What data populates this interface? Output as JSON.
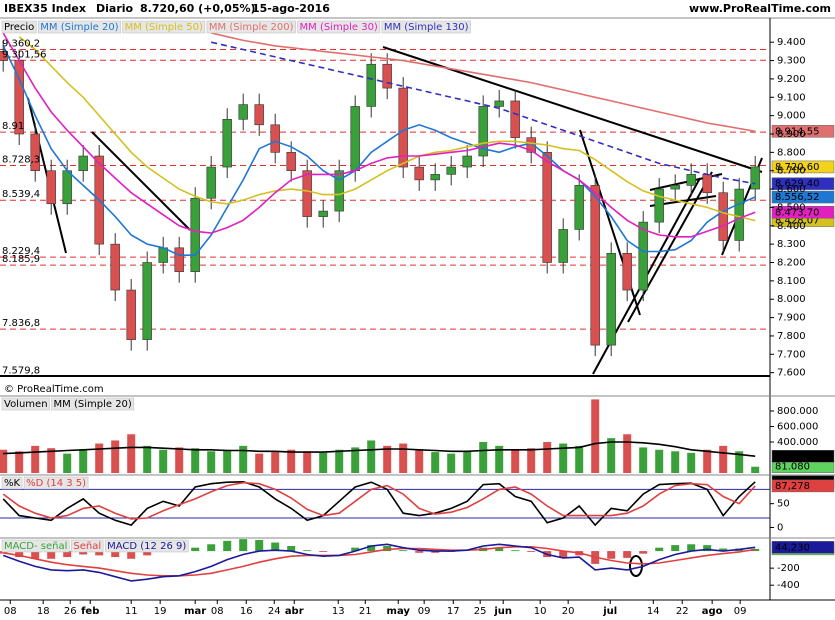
{
  "header": {
    "symbol": "IBEX35 Index",
    "period": "Diario",
    "last": "8.720,60 (+0,05%)",
    "date": "15-ago-2016",
    "site": "www.ProRealTime.com"
  },
  "chart_data": [
    {
      "type": "candlestick",
      "name": "Precio",
      "copyright": "© ProRealTime.com",
      "up_color": "#3aa03a",
      "down_color": "#d95050",
      "open": [
        9350,
        9300,
        8900,
        8700,
        8520,
        8700,
        8780,
        8300,
        8050,
        7780,
        8200,
        8280,
        8150,
        8550,
        8720,
        8980,
        9060,
        8950,
        8800,
        8700,
        8450,
        8480,
        8700,
        9050,
        9280,
        9150,
        8720,
        8650,
        8680,
        8720,
        8780,
        9050,
        9080,
        8880,
        8800,
        8200,
        8380,
        8620,
        7750,
        8250,
        8050,
        8420,
        8600,
        8620,
        8680,
        8580,
        8320,
        8600
      ],
      "high": [
        9410,
        9360,
        8960,
        8760,
        8760,
        8840,
        8840,
        8360,
        8110,
        8260,
        8340,
        8340,
        8610,
        8780,
        9040,
        9120,
        9120,
        9010,
        8860,
        8760,
        8540,
        8760,
        9110,
        9340,
        9340,
        9210,
        8780,
        8740,
        8780,
        8840,
        9110,
        9140,
        9140,
        8940,
        8860,
        8440,
        8680,
        8680,
        8310,
        8310,
        8480,
        8660,
        8680,
        8740,
        8740,
        8640,
        8660,
        8780
      ],
      "low": [
        9240,
        8840,
        8640,
        8460,
        8460,
        8640,
        8240,
        7990,
        7720,
        7720,
        8140,
        8090,
        8090,
        8490,
        8660,
        8920,
        8890,
        8740,
        8640,
        8390,
        8390,
        8420,
        8640,
        8990,
        9090,
        8660,
        8590,
        8590,
        8620,
        8660,
        8720,
        8990,
        8820,
        8740,
        8140,
        8140,
        8320,
        7690,
        7690,
        7990,
        7990,
        8360,
        8540,
        8560,
        8520,
        8260,
        8260,
        8540
      ],
      "close": [
        9300,
        8900,
        8700,
        8520,
        8700,
        8780,
        8300,
        8050,
        7780,
        8200,
        8280,
        8150,
        8550,
        8720,
        8980,
        9060,
        8950,
        8800,
        8700,
        8450,
        8480,
        8700,
        9050,
        9280,
        9150,
        8720,
        8650,
        8680,
        8720,
        8780,
        9050,
        9080,
        8880,
        8800,
        8200,
        8380,
        8620,
        7750,
        8250,
        8050,
        8420,
        8600,
        8620,
        8680,
        8580,
        8320,
        8600,
        8720.6
      ],
      "last_label": "8.720,60",
      "last_color": "#f2d21a",
      "ylim": [
        7560,
        9510
      ],
      "yticks": [
        {
          "value": 9400,
          "label": "9.400"
        },
        {
          "value": 9300,
          "label": "9.300"
        },
        {
          "value": 9200,
          "label": "9.200"
        },
        {
          "value": 9100,
          "label": "9.100"
        },
        {
          "value": 9000,
          "label": "9.000"
        },
        {
          "value": 8900,
          "label": "8.900"
        },
        {
          "value": 8800,
          "label": "8.800"
        },
        {
          "value": 8700,
          "label": "8.700"
        },
        {
          "value": 8600,
          "label": "8.600"
        },
        {
          "value": 8500,
          "label": "8.500"
        },
        {
          "value": 8400,
          "label": "8.400"
        },
        {
          "value": 8300,
          "label": "8.300"
        },
        {
          "value": 8200,
          "label": "8.200"
        },
        {
          "value": 8100,
          "label": "8.100"
        },
        {
          "value": 8000,
          "label": "8.000"
        },
        {
          "value": 7900,
          "label": "7.900"
        },
        {
          "value": 7800,
          "label": "7.800"
        },
        {
          "value": 7700,
          "label": "7.700"
        },
        {
          "value": 7600,
          "label": "7.600"
        }
      ],
      "xlim": [
        -0.2,
        47.8
      ],
      "xticks": [
        {
          "value": 0.44,
          "label": "08"
        },
        {
          "value": 2.5,
          "label": "18"
        },
        {
          "value": 4.19,
          "label": "26"
        },
        {
          "value": 5.44,
          "label": "feb"
        },
        {
          "value": 8,
          "label": "11"
        },
        {
          "value": 9.81,
          "label": "19"
        },
        {
          "value": 12,
          "label": "mar"
        },
        {
          "value": 13.38,
          "label": "08"
        },
        {
          "value": 15.19,
          "label": "16"
        },
        {
          "value": 16.94,
          "label": "24"
        },
        {
          "value": 18.19,
          "label": "abr"
        },
        {
          "value": 20.94,
          "label": "13"
        },
        {
          "value": 22.63,
          "label": "21"
        },
        {
          "value": 24.69,
          "label": "may"
        },
        {
          "value": 26.31,
          "label": "09"
        },
        {
          "value": 28.13,
          "label": "17"
        },
        {
          "value": 29.81,
          "label": "25"
        },
        {
          "value": 31.25,
          "label": "jun"
        },
        {
          "value": 33.56,
          "label": "10"
        },
        {
          "value": 35.31,
          "label": "20"
        },
        {
          "value": 37.94,
          "label": "jul"
        },
        {
          "value": 40.63,
          "label": "14"
        },
        {
          "value": 42.44,
          "label": "22"
        },
        {
          "value": 44.31,
          "label": "ago"
        },
        {
          "value": 46.06,
          "label": "09"
        }
      ],
      "level_color": "#e03030",
      "levels": [
        {
          "value": 9360.2,
          "label": "9.360,2"
        },
        {
          "value": 9301.56,
          "label": "9.301,56"
        },
        {
          "value": 8910,
          "label": "8.91"
        },
        {
          "value": 8728.3,
          "label": "8.728,3"
        },
        {
          "value": 8539.4,
          "label": "8.539,4"
        },
        {
          "value": 8229.4,
          "label": "8.229,4"
        },
        {
          "value": 8185.9,
          "label": "8.185,9"
        },
        {
          "value": 7836.8,
          "label": "7.836,8"
        },
        {
          "value": 7579.8,
          "label": "7.579,8"
        }
      ],
      "series": [
        {
          "name": "MM (Simple 20)",
          "color": "#1f77d4",
          "last_label": "8.556,52",
          "values": [
            9380,
            9200,
            9000,
            8820,
            8700,
            8620,
            8540,
            8450,
            8350,
            8300,
            8280,
            8240,
            8240,
            8350,
            8500,
            8650,
            8820,
            8860,
            8830,
            8780,
            8700,
            8650,
            8700,
            8800,
            8860,
            8920,
            8950,
            8920,
            8880,
            8850,
            8820,
            8800,
            8830,
            8850,
            8780,
            8700,
            8650,
            8560,
            8450,
            8320,
            8260,
            8260,
            8270,
            8320,
            8420,
            8480,
            8520,
            8556.52
          ]
        },
        {
          "name": "MM (Simple 50)",
          "color": "#d4c020",
          "last_label": "8.428,07",
          "values": [
            null,
            9430,
            9360,
            9270,
            9180,
            9100,
            9000,
            8900,
            8800,
            8720,
            8660,
            8600,
            8560,
            8530,
            8520,
            8540,
            8570,
            8590,
            8600,
            8590,
            8570,
            8570,
            8600,
            8650,
            8700,
            8740,
            8780,
            8800,
            8810,
            8830,
            8850,
            8860,
            8860,
            8850,
            8840,
            8820,
            8810,
            8760,
            8700,
            8640,
            8590,
            8560,
            8540,
            8520,
            8500,
            8470,
            8450,
            8428.07
          ]
        },
        {
          "name": "MM (Simple 200)",
          "color": "#e07070",
          "last_label": "8.914,55",
          "values": [
            null,
            null,
            null,
            null,
            null,
            null,
            null,
            null,
            null,
            null,
            null,
            null,
            null,
            9450,
            9430,
            9410,
            9395,
            9380,
            9370,
            9360,
            9350,
            9340,
            9330,
            9320,
            9310,
            9300,
            9285,
            9270,
            9255,
            9240,
            9225,
            9210,
            9195,
            9180,
            9160,
            9140,
            9120,
            9100,
            9080,
            9060,
            9040,
            9020,
            9000,
            8980,
            8960,
            8945,
            8930,
            8914.55
          ]
        },
        {
          "name": "MM (Simple 30)",
          "color": "#e020c0",
          "last_label": "8.473,70",
          "values": [
            9450,
            9300,
            9150,
            9020,
            8920,
            8830,
            8740,
            8660,
            8580,
            8520,
            8460,
            8400,
            8370,
            8360,
            8390,
            8430,
            8500,
            8580,
            8650,
            8680,
            8680,
            8680,
            8700,
            8740,
            8770,
            8780,
            8780,
            8790,
            8800,
            8810,
            8830,
            8850,
            8840,
            8810,
            8750,
            8700,
            8650,
            8580,
            8500,
            8430,
            8380,
            8350,
            8340,
            8340,
            8370,
            8400,
            8440,
            8473.7
          ]
        },
        {
          "name": "MM (Simple 130)",
          "color": "#3030c0",
          "dashed": true,
          "last_label": "8.629,40",
          "values": [
            null,
            null,
            null,
            null,
            null,
            null,
            null,
            null,
            null,
            null,
            null,
            null,
            null,
            9400,
            9380,
            9360,
            9340,
            9320,
            9300,
            9280,
            9260,
            9240,
            9220,
            9200,
            9180,
            9160,
            9140,
            9120,
            9100,
            9080,
            9060,
            9040,
            9010,
            8980,
            8950,
            8920,
            8890,
            8860,
            8830,
            8800,
            8770,
            8740,
            8720,
            8700,
            8680,
            8660,
            8645,
            8629.4
          ]
        }
      ]
    },
    {
      "type": "bar",
      "name": "Volumen",
      "last_label": "81.080",
      "last_color": "#5fd35f",
      "values": [
        300000,
        280000,
        350000,
        320000,
        250000,
        300000,
        380000,
        420000,
        500000,
        350000,
        300000,
        330000,
        320000,
        280000,
        300000,
        350000,
        250000,
        270000,
        300000,
        280000,
        260000,
        300000,
        330000,
        420000,
        350000,
        380000,
        300000,
        270000,
        250000,
        280000,
        400000,
        350000,
        300000,
        320000,
        400000,
        380000,
        350000,
        950000,
        450000,
        500000,
        330000,
        300000,
        280000,
        260000,
        300000,
        350000,
        280000,
        81080
      ],
      "ylim": [
        0,
        968000
      ],
      "yticks": [
        {
          "value": 800000,
          "label": "800.000"
        },
        {
          "value": 600000,
          "label": "600.000"
        },
        {
          "value": 400000,
          "label": "400.000"
        }
      ],
      "series": [
        {
          "name": "MM (Simple 20)",
          "color": "#000000",
          "last_label": "216.455",
          "values": [
            250000,
            260000,
            270000,
            280000,
            290000,
            300000,
            310000,
            320000,
            330000,
            330000,
            320000,
            310000,
            300000,
            300000,
            290000,
            290000,
            280000,
            280000,
            270000,
            270000,
            270000,
            280000,
            290000,
            300000,
            310000,
            310000,
            300000,
            290000,
            280000,
            280000,
            290000,
            300000,
            300000,
            300000,
            310000,
            320000,
            330000,
            380000,
            400000,
            400000,
            390000,
            370000,
            340000,
            300000,
            280000,
            260000,
            240000,
            216455
          ]
        }
      ]
    },
    {
      "type": "line",
      "ylim": [
        -20,
        106
      ],
      "yticks": [
        50,
        0
      ],
      "level_color": "#2a2aa0",
      "levels": [
        80,
        20
      ],
      "series": [
        {
          "name": "%K",
          "color": "#000000",
          "last_label": "95,847",
          "values": [
            60,
            25,
            20,
            15,
            40,
            60,
            30,
            15,
            5,
            40,
            55,
            45,
            85,
            92,
            95,
            96,
            85,
            60,
            40,
            15,
            25,
            55,
            85,
            95,
            80,
            30,
            25,
            30,
            40,
            55,
            90,
            92,
            65,
            55,
            10,
            20,
            45,
            5,
            40,
            35,
            70,
            90,
            92,
            93,
            80,
            25,
            65,
            95.847
          ]
        },
        {
          "name": "%D (14 3 5)",
          "color": "#e04040",
          "last_label": "87,278",
          "values": [
            70,
            45,
            30,
            20,
            25,
            40,
            45,
            30,
            18,
            20,
            35,
            48,
            60,
            75,
            88,
            94,
            92,
            80,
            62,
            38,
            25,
            30,
            55,
            80,
            88,
            70,
            40,
            28,
            32,
            42,
            60,
            80,
            85,
            70,
            45,
            25,
            25,
            25,
            25,
            30,
            45,
            70,
            88,
            92,
            90,
            65,
            50,
            87.278
          ]
        }
      ]
    },
    {
      "type": "macd",
      "ylim": [
        -550,
        130
      ],
      "yticks": [
        -200,
        -400
      ],
      "histogram": {
        "name": "MACD- señal",
        "up_color": "#3aa03a",
        "down_color": "#d95050",
        "last_label": "25,769",
        "last_color": "#5fd35f",
        "values": [
          -30,
          -70,
          -90,
          -90,
          -70,
          -40,
          -50,
          -70,
          -90,
          -50,
          -10,
          0,
          40,
          80,
          120,
          140,
          130,
          100,
          60,
          10,
          -10,
          0,
          40,
          70,
          60,
          10,
          -20,
          -20,
          -10,
          0,
          40,
          40,
          10,
          -10,
          -70,
          -80,
          -50,
          -150,
          -90,
          -80,
          -30,
          40,
          70,
          80,
          70,
          30,
          30,
          25.769
        ]
      },
      "series": [
        {
          "name": "Señal",
          "color": "#e04040",
          "values": [
            -20,
            -50,
            -90,
            -130,
            -160,
            -180,
            -200,
            -230,
            -260,
            -280,
            -290,
            -290,
            -280,
            -260,
            -220,
            -180,
            -130,
            -90,
            -60,
            -50,
            -50,
            -50,
            -40,
            -10,
            20,
            30,
            30,
            20,
            10,
            10,
            20,
            40,
            50,
            50,
            30,
            0,
            -20,
            -70,
            -110,
            -140,
            -150,
            -140,
            -110,
            -80,
            -50,
            -30,
            -10,
            18.461
          ]
        },
        {
          "name": "MACD (12 26 9)",
          "color": "#1a1a9a",
          "last_label": "44,230",
          "values": [
            -50,
            -120,
            -180,
            -220,
            -230,
            -220,
            -250,
            -300,
            -350,
            -330,
            -300,
            -290,
            -240,
            -180,
            -100,
            -40,
            0,
            10,
            0,
            -40,
            -60,
            -50,
            0,
            60,
            80,
            40,
            10,
            0,
            0,
            10,
            60,
            80,
            60,
            40,
            -40,
            -80,
            -70,
            -220,
            -200,
            -220,
            -180,
            -100,
            -40,
            0,
            20,
            0,
            20,
            44.23
          ]
        }
      ]
    }
  ]
}
